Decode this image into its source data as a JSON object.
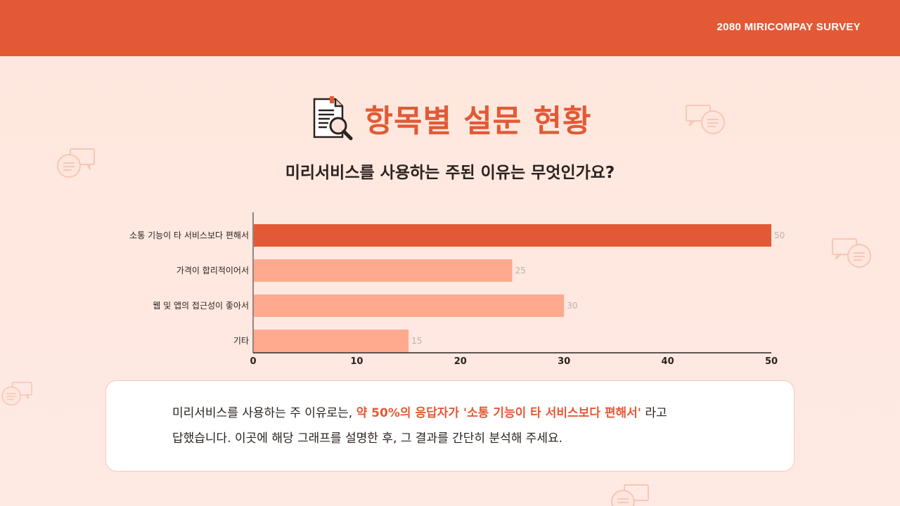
{
  "header": {
    "label": "2080 MIRICOMPAY SURVEY"
  },
  "title": {
    "text": "항목별 설문 현황",
    "icon": "document-search-icon"
  },
  "question": "미리서비스를 사용하는 주된 이유는 무엇인가요?",
  "chart_data": {
    "type": "bar",
    "orientation": "horizontal",
    "categories": [
      "소통 기능이 타 서비스보다 편해서",
      "가격이 합리적이어서",
      "웹 및 앱의 접근성이 좋아서",
      "기타"
    ],
    "values": [
      50,
      25,
      30,
      15
    ],
    "xlim": [
      0,
      50
    ],
    "x_ticks": [
      0,
      10,
      20,
      30,
      40,
      50
    ],
    "highlight_index": 0,
    "colors": {
      "highlight": "#e35935",
      "normal": "#ffa98f"
    },
    "grid": false,
    "legend": "none"
  },
  "summary": {
    "prefix": "미리서비스를 사용하는 주 이유로는, ",
    "highlight": "약 50%의 응답자가 '소통 기능이 타 서비스보다 편해서'",
    "suffix": " 라고",
    "line2": "답했습니다. 이곳에 해당 그래프를 설명한 후, 그 결과를 간단히 분석해 주세요."
  },
  "decorations": {
    "icon": "chat-bubbles-icon"
  }
}
